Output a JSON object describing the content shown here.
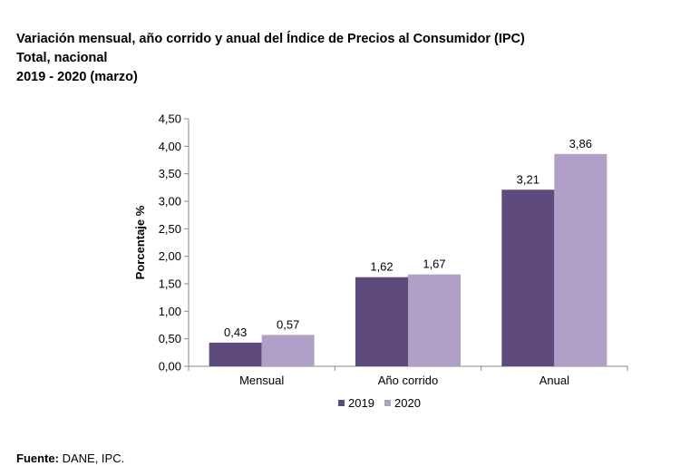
{
  "header": {
    "title": "Variación mensual, año corrido y anual del Índice de Precios al Consumidor (IPC)",
    "subtitle": "Total, nacional",
    "period": "2019 - 2020 (marzo)"
  },
  "source": {
    "label": "Fuente:",
    "text": "DANE, IPC."
  },
  "chart_data": {
    "type": "bar",
    "categories": [
      "Mensual",
      "Año corrido",
      "Anual"
    ],
    "series": [
      {
        "name": "2019",
        "values": [
          0.43,
          1.62,
          3.21
        ],
        "labels": [
          "0,43",
          "1,62",
          "3,21"
        ],
        "color": "#5e4a7c"
      },
      {
        "name": "2020",
        "values": [
          0.57,
          1.67,
          3.86
        ],
        "labels": [
          "0,57",
          "1,67",
          "3,86"
        ],
        "color": "#b0a0c8"
      }
    ],
    "ylabel": "Porcentaje %",
    "ylim": [
      0,
      4.5
    ],
    "yticks": [
      0,
      0.5,
      1,
      1.5,
      2,
      2.5,
      3,
      3.5,
      4,
      4.5
    ],
    "ytick_labels": [
      "0,00",
      "0,50",
      "1,00",
      "1,50",
      "2,00",
      "2,50",
      "3,00",
      "3,50",
      "4,00",
      "4,50"
    ],
    "grid": false,
    "legend": "bottom-center"
  }
}
